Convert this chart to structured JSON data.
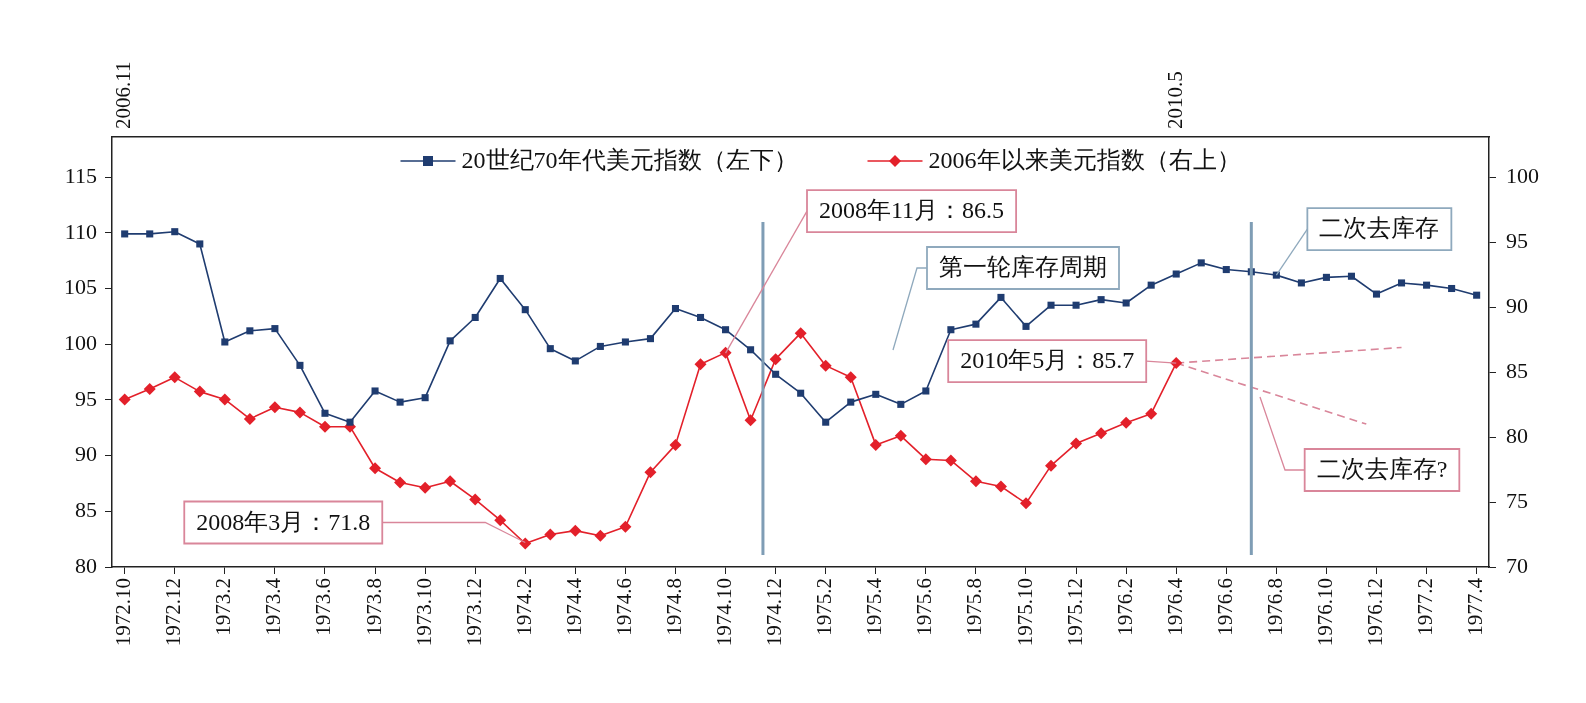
{
  "chart_data": {
    "type": "line",
    "x": [
      "1972-10",
      "1972-11",
      "1972-12",
      "1973-01",
      "1973-02",
      "1973-03",
      "1973-04",
      "1973-05",
      "1973-06",
      "1973-07",
      "1973-08",
      "1973-09",
      "1973-10",
      "1973-11",
      "1973-12",
      "1974-01",
      "1974-02",
      "1974-03",
      "1974-04",
      "1974-05",
      "1974-06",
      "1974-07",
      "1974-08",
      "1974-09",
      "1974-10",
      "1974-11",
      "1974-12",
      "1975-01",
      "1975-02",
      "1975-03",
      "1975-04",
      "1975-05",
      "1975-06",
      "1975-07",
      "1975-08",
      "1975-09",
      "1975-10",
      "1975-11",
      "1975-12",
      "1976-01",
      "1976-02",
      "1976-03",
      "1976-04",
      "1976-05",
      "1976-06",
      "1976-07",
      "1976-08",
      "1976-09",
      "1976-10",
      "1976-11",
      "1976-12",
      "1977-01",
      "1977-02",
      "1977-03",
      "1977-04"
    ],
    "series": [
      {
        "name": "20世纪70年代美元指数（左下）",
        "color": "#1f3c70",
        "marker": "square",
        "values": [
          109.9,
          109.9,
          110.1,
          109.0,
          100.2,
          101.2,
          101.4,
          98.1,
          93.8,
          93.0,
          95.8,
          94.8,
          95.2,
          100.3,
          102.4,
          105.9,
          103.1,
          99.6,
          98.5,
          99.8,
          100.2,
          100.5,
          103.2,
          102.4,
          101.3,
          99.5,
          97.3,
          95.6,
          93.0,
          94.8,
          95.5,
          94.6,
          95.8,
          101.3,
          101.8,
          104.2,
          101.6,
          103.5,
          103.5,
          104.0,
          103.7,
          105.3,
          106.3,
          107.3,
          106.7,
          106.5,
          106.2,
          105.5,
          106.0,
          106.1,
          104.5,
          105.5,
          105.3,
          105.0,
          104.4
        ]
      },
      {
        "name": "2006年以来美元指数（右上）",
        "color": "#e3202a",
        "marker": "diamond",
        "axis": "y2",
        "x": [
          "1972-10",
          "1972-11",
          "1972-12",
          "1973-01",
          "1973-02",
          "1973-03",
          "1973-04",
          "1973-05",
          "1973-06",
          "1973-07",
          "1973-08",
          "1973-09",
          "1973-10",
          "1973-11",
          "1973-12",
          "1974-01",
          "1974-02",
          "1974-03",
          "1974-04",
          "1974-05",
          "1974-06",
          "1974-07",
          "1974-08",
          "1974-09",
          "1974-10",
          "1974-11",
          "1974-12",
          "1975-01",
          "1975-02",
          "1975-03",
          "1975-04",
          "1975-05",
          "1975-06",
          "1975-07",
          "1975-08",
          "1975-09",
          "1975-10",
          "1975-11",
          "1975-12",
          "1976-01",
          "1976-02",
          "1976-03",
          "1976-04"
        ],
        "values": [
          82.9,
          83.7,
          84.6,
          83.5,
          82.9,
          81.4,
          82.3,
          81.9,
          80.8,
          80.8,
          77.6,
          76.5,
          76.1,
          76.6,
          75.2,
          73.6,
          71.8,
          72.5,
          72.8,
          72.4,
          73.1,
          77.3,
          79.4,
          85.6,
          86.5,
          81.3,
          86.0,
          88.0,
          85.5,
          84.6,
          79.4,
          80.1,
          78.3,
          78.2,
          76.6,
          76.2,
          74.9,
          77.8,
          79.5,
          80.3,
          81.1,
          81.8,
          85.7
        ]
      },
      {
        "color": "#d9869a",
        "marker": "none",
        "line_style": "dashed",
        "axis": "y2",
        "x": [
          "1976-04",
          "1977-01"
        ],
        "values": [
          85.7,
          86.9
        ]
      },
      {
        "color": "#d9869a",
        "marker": "none",
        "line_style": "dashed",
        "axis": "y2",
        "x": [
          "1976-04",
          "1976-11-19"
        ],
        "values": [
          85.7,
          81.0
        ]
      }
    ],
    "xlim": [
      "1972-09-16",
      "1977-04-16"
    ],
    "xticks": [
      {
        "value": "1972-10",
        "label": "1972.10"
      },
      {
        "value": "1972-12",
        "label": "1972.12"
      },
      {
        "value": "1973-02",
        "label": "1973.2"
      },
      {
        "value": "1973-04",
        "label": "1973.4"
      },
      {
        "value": "1973-06",
        "label": "1973.6"
      },
      {
        "value": "1973-08",
        "label": "1973.8"
      },
      {
        "value": "1973-10",
        "label": "1973.10"
      },
      {
        "value": "1973-12",
        "label": "1973.12"
      },
      {
        "value": "1974-02",
        "label": "1974.2"
      },
      {
        "value": "1974-04",
        "label": "1974.4"
      },
      {
        "value": "1974-06",
        "label": "1974.6"
      },
      {
        "value": "1974-08",
        "label": "1974.8"
      },
      {
        "value": "1974-10",
        "label": "1974.10"
      },
      {
        "value": "1974-12",
        "label": "1974.12"
      },
      {
        "value": "1975-02",
        "label": "1975.2"
      },
      {
        "value": "1975-04",
        "label": "1975.4"
      },
      {
        "value": "1975-06",
        "label": "1975.6"
      },
      {
        "value": "1975-08",
        "label": "1975.8"
      },
      {
        "value": "1975-10",
        "label": "1975.10"
      },
      {
        "value": "1975-12",
        "label": "1975.12"
      },
      {
        "value": "1976-02",
        "label": "1976.2"
      },
      {
        "value": "1976-04",
        "label": "1976.4"
      },
      {
        "value": "1976-06",
        "label": "1976.6"
      },
      {
        "value": "1976-08",
        "label": "1976.8"
      },
      {
        "value": "1976-10",
        "label": "1976.10"
      },
      {
        "value": "1976-12",
        "label": "1976.12"
      },
      {
        "value": "1977-02",
        "label": "1977.2"
      },
      {
        "value": "1977-04",
        "label": "1977.4"
      }
    ],
    "x2lim": [
      "2006-10-16",
      "2011-05-16"
    ],
    "x2ticks": [
      {
        "value": "2006-11",
        "label": "2006.11"
      },
      {
        "value": "2010-05",
        "label": "2010.5"
      }
    ],
    "ylim": [
      80,
      118.6
    ],
    "yticks": [
      80,
      85,
      90,
      95,
      100,
      105,
      110,
      115
    ],
    "y2lim": [
      70,
      103.1
    ],
    "y2ticks": [
      70,
      75,
      80,
      85,
      90,
      95,
      100
    ],
    "ref_lines": [
      {
        "axis": "x",
        "value": "1974-11-16",
        "color": "#7f9db5"
      },
      {
        "axis": "x",
        "value": "1976-07",
        "color": "#7f9db5"
      }
    ],
    "annotations": [
      {
        "text": "2008年11月：86.5",
        "x": "1974-10",
        "y": 99.2
      },
      {
        "text": "2008年3月：71.8",
        "x": "1974-02",
        "y": 82.2
      },
      {
        "text": "2010年5月：85.7",
        "x": "1976-04",
        "y": 98.3
      },
      "第一轮库存周期",
      {
        "text": "二次去库存",
        "x": "1976-08",
        "y": 106.2
      },
      "二次去库存?"
    ],
    "grid": false,
    "legend": "top"
  }
}
